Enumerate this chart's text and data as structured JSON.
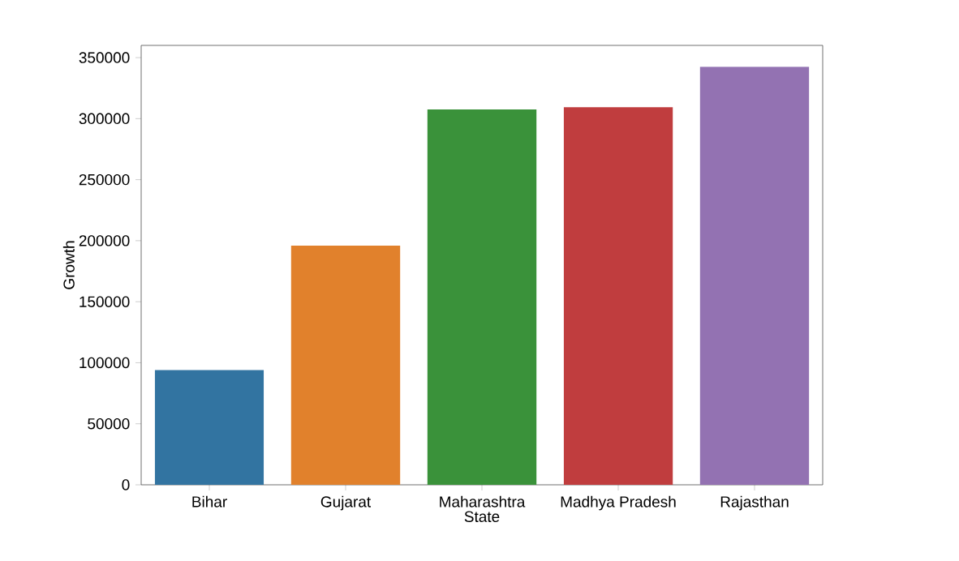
{
  "chart_data": {
    "type": "bar",
    "xlabel": "State",
    "ylabel": "Growth",
    "categories": [
      "Bihar",
      "Gujarat",
      "Maharashtra",
      "Madhya Pradesh",
      "Rajasthan"
    ],
    "values": [
      94000,
      196000,
      307500,
      309300,
      342500
    ],
    "colors": [
      "#3274a1",
      "#e1812c",
      "#3a923a",
      "#c03d3e",
      "#9372b2"
    ],
    "ylim": [
      0,
      360000
    ],
    "yticks": [
      0,
      50000,
      100000,
      150000,
      200000,
      250000,
      300000,
      350000
    ]
  }
}
